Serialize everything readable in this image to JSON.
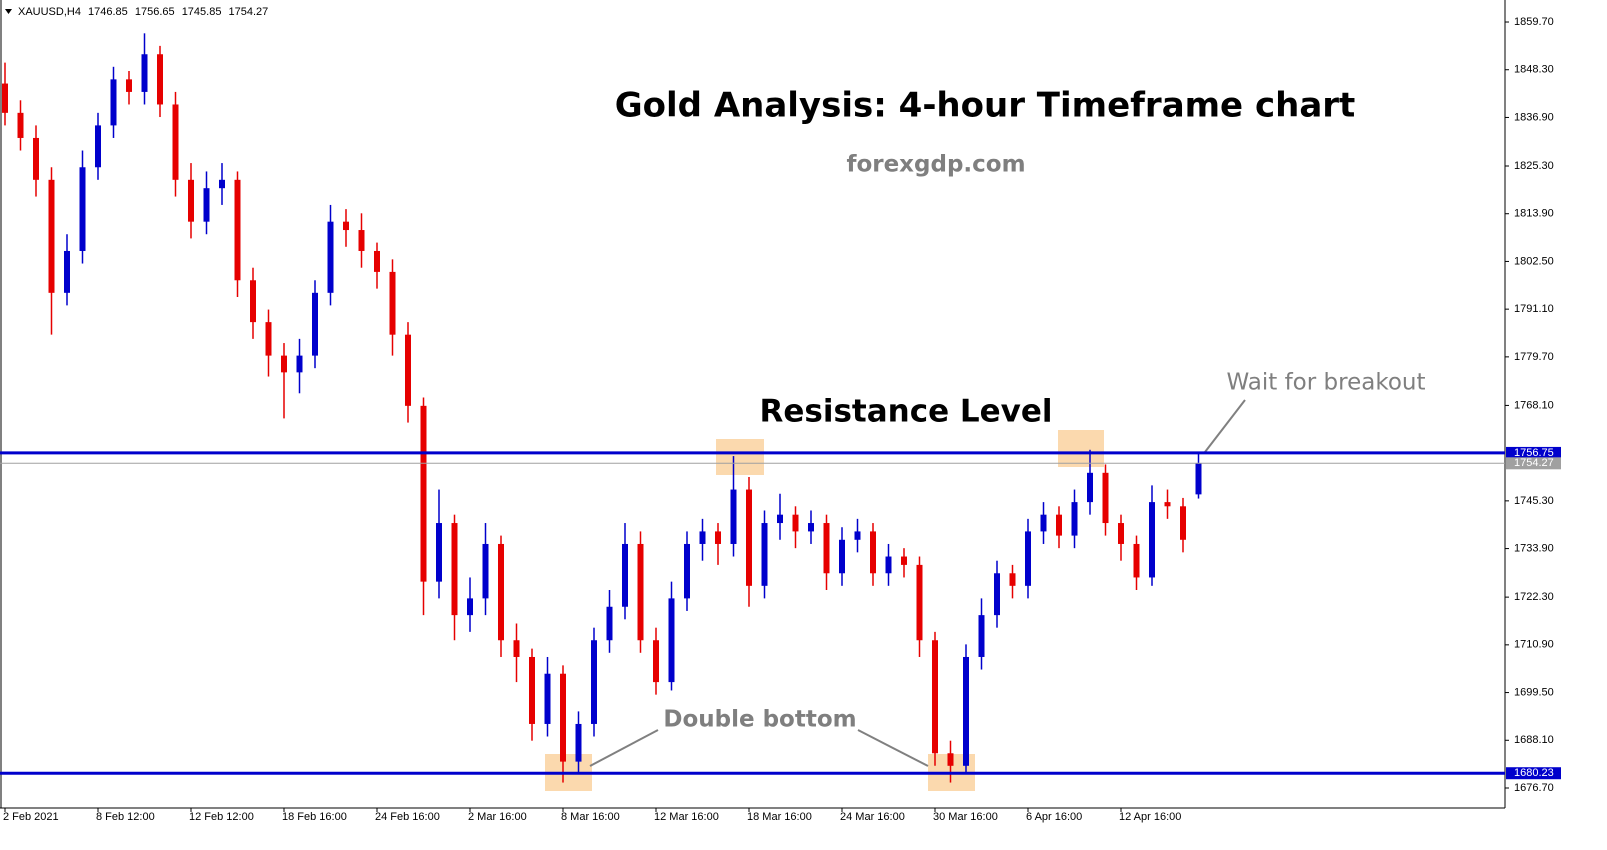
{
  "chart_data": {
    "type": "candlestick",
    "symbol": "XAUUSD,H4",
    "header_ohlc": [
      1746.85,
      1756.65,
      1745.85,
      1754.27
    ],
    "title": "Gold Analysis: 4-hour Timeframe chart",
    "subtitle": "forexgdp.com",
    "annotations": {
      "resistance": "Resistance Level",
      "breakout": "Wait for breakout",
      "double_bottom": "Double bottom"
    },
    "up_color": "#0000cc",
    "down_color": "#e60000",
    "categories": [
      "2 Feb 2021",
      null,
      null,
      null,
      null,
      null,
      "8 Feb 12:00",
      null,
      null,
      null,
      null,
      null,
      "12 Feb 12:00",
      null,
      null,
      null,
      null,
      null,
      "18 Feb 16:00",
      null,
      null,
      null,
      null,
      null,
      "24 Feb 16:00",
      null,
      null,
      null,
      null,
      null,
      "2 Mar 16:00",
      null,
      null,
      null,
      null,
      null,
      "8 Mar 16:00",
      null,
      null,
      null,
      null,
      null,
      "12 Mar 16:00",
      null,
      null,
      null,
      null,
      null,
      "18 Mar 16:00",
      null,
      null,
      null,
      null,
      null,
      "24 Mar 16:00",
      null,
      null,
      null,
      null,
      null,
      "30 Mar 16:00",
      null,
      null,
      null,
      null,
      null,
      "6 Apr 16:00",
      null,
      null,
      null,
      null,
      null,
      "12 Apr 16:00",
      null,
      null,
      null,
      null,
      null
    ],
    "open": [
      1845,
      1838,
      1832,
      1822,
      1795,
      1805,
      1825,
      1835,
      1846,
      1843,
      1852,
      1840,
      1822,
      1812,
      1820,
      1822,
      1798,
      1788,
      1780,
      1776,
      1780,
      1795,
      1812,
      1810,
      1805,
      1800,
      1785,
      1768,
      1726,
      1740,
      1718,
      1722,
      1735,
      1712,
      1708,
      1692,
      1704,
      1683,
      1692,
      1712,
      1720,
      1735,
      1712,
      1702,
      1722,
      1735,
      1738,
      1735,
      1748,
      1725,
      1740,
      1742,
      1738,
      1740,
      1728,
      1736,
      1738,
      1728,
      1732,
      1730,
      1712,
      1685,
      1682,
      1708,
      1718,
      1728,
      1725,
      1738,
      1742,
      1737,
      1745,
      1752,
      1740,
      1735,
      1727,
      1745,
      1744,
      1746.85
    ],
    "high": [
      1850,
      1841,
      1835,
      1825,
      1809,
      1829,
      1838,
      1849,
      1848,
      1857,
      1854,
      1843,
      1826,
      1824,
      1826,
      1824,
      1801,
      1791,
      1783,
      1784,
      1798,
      1816,
      1815,
      1814,
      1807,
      1803,
      1788,
      1770,
      1748,
      1742,
      1727,
      1740,
      1737,
      1716,
      1710,
      1708,
      1706,
      1695,
      1715,
      1724,
      1740,
      1738,
      1715,
      1726,
      1738,
      1741,
      1740,
      1756,
      1751,
      1743,
      1747,
      1744,
      1743,
      1742,
      1739,
      1741,
      1740,
      1735,
      1734,
      1732,
      1714,
      1688,
      1711,
      1722,
      1731,
      1730,
      1741,
      1745,
      1744,
      1748,
      1757.5,
      1754,
      1742,
      1737,
      1749,
      1748,
      1746,
      1756.65
    ],
    "low": [
      1835,
      1829,
      1818,
      1785,
      1792,
      1802,
      1822,
      1832,
      1840,
      1840,
      1837,
      1818,
      1808,
      1809,
      1816,
      1794,
      1784,
      1775,
      1765,
      1771,
      1777,
      1792,
      1806,
      1801,
      1796,
      1780,
      1764,
      1718,
      1722,
      1712,
      1714,
      1718,
      1708,
      1702,
      1688,
      1689,
      1678,
      1680,
      1689,
      1709,
      1717,
      1709,
      1699,
      1700,
      1719,
      1731,
      1730,
      1732,
      1720,
      1722,
      1736,
      1734,
      1735,
      1724,
      1725,
      1733,
      1725,
      1725,
      1727,
      1708,
      1682,
      1678,
      1680,
      1705,
      1715,
      1722,
      1722,
      1735,
      1734,
      1734,
      1742,
      1737,
      1731,
      1724,
      1725,
      1741,
      1733,
      1745.85
    ],
    "close": [
      1838,
      1832,
      1822,
      1795,
      1805,
      1825,
      1835,
      1846,
      1843,
      1852,
      1840,
      1822,
      1812,
      1820,
      1822,
      1798,
      1788,
      1780,
      1776,
      1780,
      1795,
      1812,
      1810,
      1805,
      1800,
      1785,
      1768,
      1726,
      1740,
      1718,
      1722,
      1735,
      1712,
      1708,
      1692,
      1704,
      1683,
      1692,
      1712,
      1720,
      1735,
      1712,
      1702,
      1722,
      1735,
      1738,
      1735,
      1748,
      1725,
      1740,
      1742,
      1738,
      1740,
      1728,
      1736,
      1738,
      1728,
      1732,
      1730,
      1712,
      1685,
      1682,
      1708,
      1718,
      1728,
      1725,
      1738,
      1742,
      1737,
      1745,
      1752,
      1740,
      1735,
      1727,
      1745,
      1744,
      1736,
      1754.27
    ],
    "ylim": [
      1671.92,
      1864.96
    ],
    "yticks": [
      {
        "value": 1859.7,
        "label": "1859.70"
      },
      {
        "value": 1848.3,
        "label": "1848.30"
      },
      {
        "value": 1836.9,
        "label": "1836.90"
      },
      {
        "value": 1825.3,
        "label": "1825.30"
      },
      {
        "value": 1813.9,
        "label": "1813.90"
      },
      {
        "value": 1802.5,
        "label": "1802.50"
      },
      {
        "value": 1791.1,
        "label": "1791.10"
      },
      {
        "value": 1779.7,
        "label": "1779.70"
      },
      {
        "value": 1768.1,
        "label": "1768.10"
      },
      {
        "value": 1745.3,
        "label": "1745.30"
      },
      {
        "value": 1733.9,
        "label": "1733.90"
      },
      {
        "value": 1722.3,
        "label": "1722.30"
      },
      {
        "value": 1710.9,
        "label": "1710.90"
      },
      {
        "value": 1699.5,
        "label": "1699.50"
      },
      {
        "value": 1688.1,
        "label": "1688.10"
      },
      {
        "value": 1676.7,
        "label": "1676.70"
      }
    ],
    "levels": [
      {
        "value": 1756.75,
        "color": "#0000cc",
        "width": 3
      },
      {
        "value": 1680.23,
        "color": "#0000cc",
        "width": 3
      },
      {
        "value": 1754.27,
        "color": "#a0a0a0",
        "width": 1
      }
    ]
  }
}
